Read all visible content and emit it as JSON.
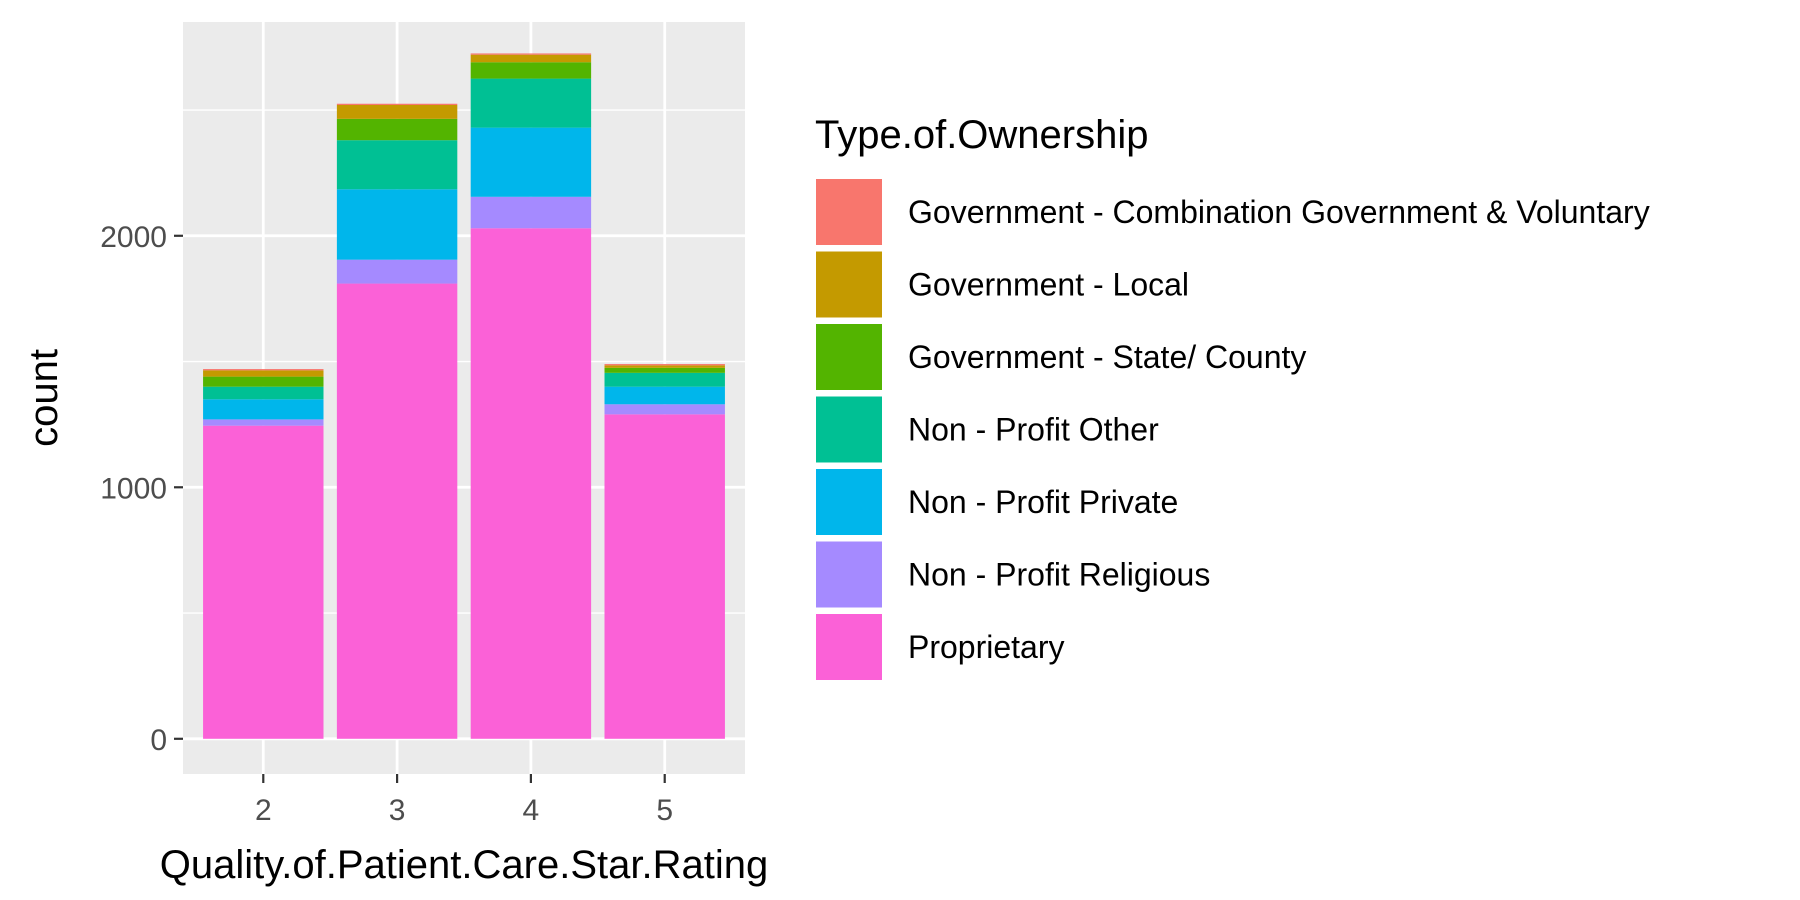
{
  "chart_data": {
    "type": "bar",
    "stacked": true,
    "xlabel": "Quality.of.Patient.Care.Star.Rating",
    "ylabel": "count",
    "categories": [
      "2",
      "3",
      "4",
      "5"
    ],
    "yticks": [
      0,
      1000,
      2000
    ],
    "ylim": [
      -140,
      2850
    ],
    "grid": true,
    "legend_position": "right",
    "legend_title": "Type.of.Ownership",
    "series": [
      {
        "name": "Proprietary",
        "color": "#FB61D7",
        "values": [
          1245,
          1810,
          2030,
          1290
        ]
      },
      {
        "name": "Non - Profit Religious",
        "color": "#A58AFF",
        "values": [
          25,
          95,
          125,
          40
        ]
      },
      {
        "name": "Non - Profit Private",
        "color": "#00B6EB",
        "values": [
          80,
          280,
          275,
          70
        ]
      },
      {
        "name": "Non - Profit Other",
        "color": "#00C094",
        "values": [
          50,
          195,
          195,
          55
        ]
      },
      {
        "name": "Government - State/ County",
        "color": "#53B400",
        "values": [
          40,
          85,
          65,
          20
        ]
      },
      {
        "name": "Government - Local",
        "color": "#C49A00",
        "values": [
          25,
          55,
          30,
          10
        ]
      },
      {
        "name": "Government - Combination Government & Voluntary",
        "color": "#F8766D",
        "values": [
          5,
          5,
          5,
          5
        ]
      }
    ],
    "legend_order": [
      "Government - Combination Government & Voluntary",
      "Government - Local",
      "Government - State/ County",
      "Non - Profit Other",
      "Non - Profit Private",
      "Non - Profit Religious",
      "Proprietary"
    ]
  }
}
